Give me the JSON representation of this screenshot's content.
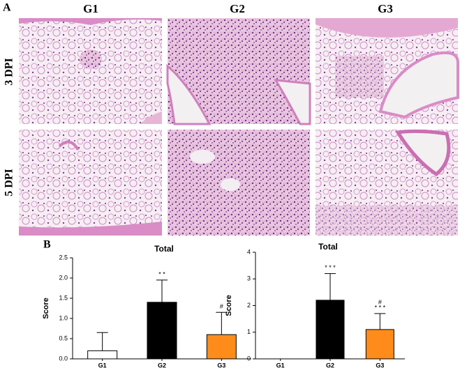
{
  "figure": {
    "panel_a": {
      "label": "A",
      "columns": [
        "G1",
        "G2",
        "G3"
      ],
      "rows": [
        "3 DPI",
        "5 DPI"
      ]
    },
    "panel_b": {
      "label": "B"
    }
  },
  "chart_data": [
    {
      "type": "bar",
      "title": "Total",
      "y_label": "Score",
      "categories": [
        "G1",
        "G2",
        "G3"
      ],
      "values": [
        0.2,
        1.4,
        0.6
      ],
      "errors": [
        0.45,
        0.55,
        0.55
      ],
      "colors": [
        "#ffffff",
        "#000000",
        "#ff8c1a"
      ],
      "ylim": [
        0,
        2.5
      ],
      "yticks": [
        {
          "value": 0,
          "label": "0.0"
        },
        0.5,
        {
          "value": 1,
          "label": "1.0"
        },
        1.5,
        {
          "value": 2,
          "label": "2.0"
        },
        2.5
      ],
      "annotations": [
        {
          "category": "G2",
          "text": "* *"
        },
        {
          "category": "G3",
          "text": "#"
        }
      ]
    },
    {
      "type": "bar",
      "title": "Total",
      "y_label": "Score",
      "categories": [
        "G1",
        "G2",
        "G3"
      ],
      "values": [
        0,
        2.2,
        1.1
      ],
      "errors": [
        0,
        1.0,
        0.6
      ],
      "colors": [
        "#ffffff",
        "#000000",
        "#ff8c1a"
      ],
      "ylim": [
        0,
        4
      ],
      "yticks": [
        0,
        1,
        2,
        3,
        4
      ],
      "annotations": [
        {
          "category": "G2",
          "text": "* * *"
        },
        {
          "category": "G3",
          "text": "* * *"
        },
        {
          "category": "G3",
          "text": "#"
        }
      ]
    }
  ]
}
